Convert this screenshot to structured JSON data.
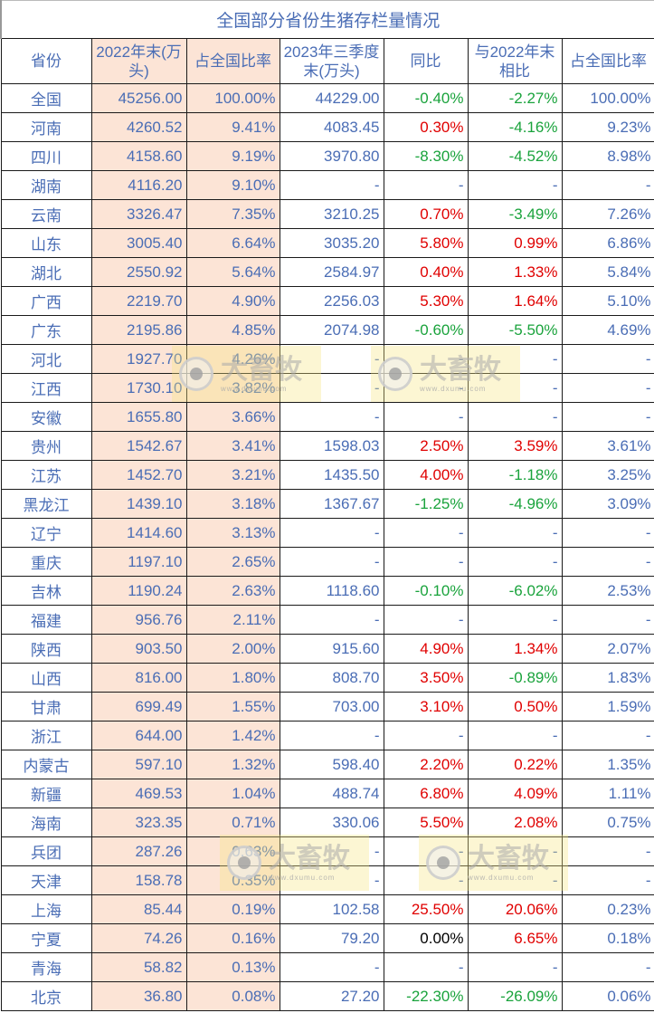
{
  "table": {
    "title": "全国部分省份生猪存栏量情况",
    "headers": {
      "province": "省份",
      "end2022": "2022年末(万头)",
      "share2022": "占全国比率",
      "q3_2023": "2023年三季度末(万头)",
      "yoy": "同比",
      "vs2022": "与2022年末相比",
      "share2023": "占全国比率"
    },
    "highlight_color": "#fce4d6",
    "colors": {
      "positive": "#e00000",
      "negative": "#1aa33c",
      "text": "#4a6db5"
    },
    "rows": [
      {
        "province": "全国",
        "end2022": "45256.00",
        "share2022": "100.00%",
        "q3_2023": "44229.00",
        "yoy": "-0.40%",
        "vs2022": "-2.27%",
        "share2023": "100.00%"
      },
      {
        "province": "河南",
        "end2022": "4260.52",
        "share2022": "9.41%",
        "q3_2023": "4083.45",
        "yoy": "0.30%",
        "vs2022": "-4.16%",
        "share2023": "9.23%"
      },
      {
        "province": "四川",
        "end2022": "4158.60",
        "share2022": "9.19%",
        "q3_2023": "3970.80",
        "yoy": "-8.30%",
        "vs2022": "-4.52%",
        "share2023": "8.98%"
      },
      {
        "province": "湖南",
        "end2022": "4116.20",
        "share2022": "9.10%",
        "q3_2023": "-",
        "yoy": "-",
        "vs2022": "-",
        "share2023": "-"
      },
      {
        "province": "云南",
        "end2022": "3326.47",
        "share2022": "7.35%",
        "q3_2023": "3210.25",
        "yoy": "0.70%",
        "vs2022": "-3.49%",
        "share2023": "7.26%"
      },
      {
        "province": "山东",
        "end2022": "3005.40",
        "share2022": "6.64%",
        "q3_2023": "3035.20",
        "yoy": "5.80%",
        "vs2022": "0.99%",
        "share2023": "6.86%"
      },
      {
        "province": "湖北",
        "end2022": "2550.92",
        "share2022": "5.64%",
        "q3_2023": "2584.97",
        "yoy": "0.40%",
        "vs2022": "1.33%",
        "share2023": "5.84%"
      },
      {
        "province": "广西",
        "end2022": "2219.70",
        "share2022": "4.90%",
        "q3_2023": "2256.03",
        "yoy": "5.30%",
        "vs2022": "1.64%",
        "share2023": "5.10%"
      },
      {
        "province": "广东",
        "end2022": "2195.86",
        "share2022": "4.85%",
        "q3_2023": "2074.98",
        "yoy": "-0.60%",
        "vs2022": "-5.50%",
        "share2023": "4.69%"
      },
      {
        "province": "河北",
        "end2022": "1927.70",
        "share2022": "4.26%",
        "q3_2023": "-",
        "yoy": "-",
        "vs2022": "-",
        "share2023": "-"
      },
      {
        "province": "江西",
        "end2022": "1730.10",
        "share2022": "3.82%",
        "q3_2023": "-",
        "yoy": "-",
        "vs2022": "-",
        "share2023": "-"
      },
      {
        "province": "安徽",
        "end2022": "1655.80",
        "share2022": "3.66%",
        "q3_2023": "-",
        "yoy": "-",
        "vs2022": "-",
        "share2023": "-"
      },
      {
        "province": "贵州",
        "end2022": "1542.67",
        "share2022": "3.41%",
        "q3_2023": "1598.03",
        "yoy": "2.50%",
        "vs2022": "3.59%",
        "share2023": "3.61%"
      },
      {
        "province": "江苏",
        "end2022": "1452.70",
        "share2022": "3.21%",
        "q3_2023": "1435.50",
        "yoy": "4.00%",
        "vs2022": "-1.18%",
        "share2023": "3.25%"
      },
      {
        "province": "黑龙江",
        "end2022": "1439.10",
        "share2022": "3.18%",
        "q3_2023": "1367.67",
        "yoy": "-1.25%",
        "vs2022": "-4.96%",
        "share2023": "3.09%"
      },
      {
        "province": "辽宁",
        "end2022": "1414.60",
        "share2022": "3.13%",
        "q3_2023": "-",
        "yoy": "-",
        "vs2022": "-",
        "share2023": "-"
      },
      {
        "province": "重庆",
        "end2022": "1197.10",
        "share2022": "2.65%",
        "q3_2023": "-",
        "yoy": "-",
        "vs2022": "-",
        "share2023": "-"
      },
      {
        "province": "吉林",
        "end2022": "1190.24",
        "share2022": "2.63%",
        "q3_2023": "1118.60",
        "yoy": "-0.10%",
        "vs2022": "-6.02%",
        "share2023": "2.53%"
      },
      {
        "province": "福建",
        "end2022": "956.76",
        "share2022": "2.11%",
        "q3_2023": "-",
        "yoy": "-",
        "vs2022": "-",
        "share2023": "-"
      },
      {
        "province": "陕西",
        "end2022": "903.50",
        "share2022": "2.00%",
        "q3_2023": "915.60",
        "yoy": "4.90%",
        "vs2022": "1.34%",
        "share2023": "2.07%"
      },
      {
        "province": "山西",
        "end2022": "816.00",
        "share2022": "1.80%",
        "q3_2023": "808.70",
        "yoy": "3.50%",
        "vs2022": "-0.89%",
        "share2023": "1.83%"
      },
      {
        "province": "甘肃",
        "end2022": "699.49",
        "share2022": "1.55%",
        "q3_2023": "703.00",
        "yoy": "3.10%",
        "vs2022": "0.50%",
        "share2023": "1.59%"
      },
      {
        "province": "浙江",
        "end2022": "644.00",
        "share2022": "1.42%",
        "q3_2023": "-",
        "yoy": "-",
        "vs2022": "-",
        "share2023": "-"
      },
      {
        "province": "内蒙古",
        "end2022": "597.10",
        "share2022": "1.32%",
        "q3_2023": "598.40",
        "yoy": "2.20%",
        "vs2022": "0.22%",
        "share2023": "1.35%"
      },
      {
        "province": "新疆",
        "end2022": "469.53",
        "share2022": "1.04%",
        "q3_2023": "488.74",
        "yoy": "6.80%",
        "vs2022": "4.09%",
        "share2023": "1.11%"
      },
      {
        "province": "海南",
        "end2022": "323.35",
        "share2022": "0.71%",
        "q3_2023": "330.06",
        "yoy": "5.50%",
        "vs2022": "2.08%",
        "share2023": "0.75%"
      },
      {
        "province": "兵团",
        "end2022": "287.26",
        "share2022": "0.63%",
        "q3_2023": "-",
        "yoy": "-",
        "vs2022": "-",
        "share2023": "-"
      },
      {
        "province": "天津",
        "end2022": "158.78",
        "share2022": "0.35%",
        "q3_2023": "-",
        "yoy": "-",
        "vs2022": "-",
        "share2023": "-"
      },
      {
        "province": "上海",
        "end2022": "85.44",
        "share2022": "0.19%",
        "q3_2023": "102.58",
        "yoy": "25.50%",
        "vs2022": "20.06%",
        "share2023": "0.23%"
      },
      {
        "province": "宁夏",
        "end2022": "74.26",
        "share2022": "0.16%",
        "q3_2023": "79.20",
        "yoy": "0.00%",
        "vs2022": "6.65%",
        "share2023": "0.18%"
      },
      {
        "province": "青海",
        "end2022": "58.82",
        "share2022": "0.13%",
        "q3_2023": "-",
        "yoy": "-",
        "vs2022": "-",
        "share2023": "-"
      },
      {
        "province": "北京",
        "end2022": "36.80",
        "share2022": "0.08%",
        "q3_2023": "27.20",
        "yoy": "-22.30%",
        "vs2022": "-26.09%",
        "share2023": "0.06%"
      }
    ]
  },
  "watermark": {
    "brand": "大畜牧",
    "url": "www.dxumu.com",
    "icon": "eye-logo-icon"
  }
}
